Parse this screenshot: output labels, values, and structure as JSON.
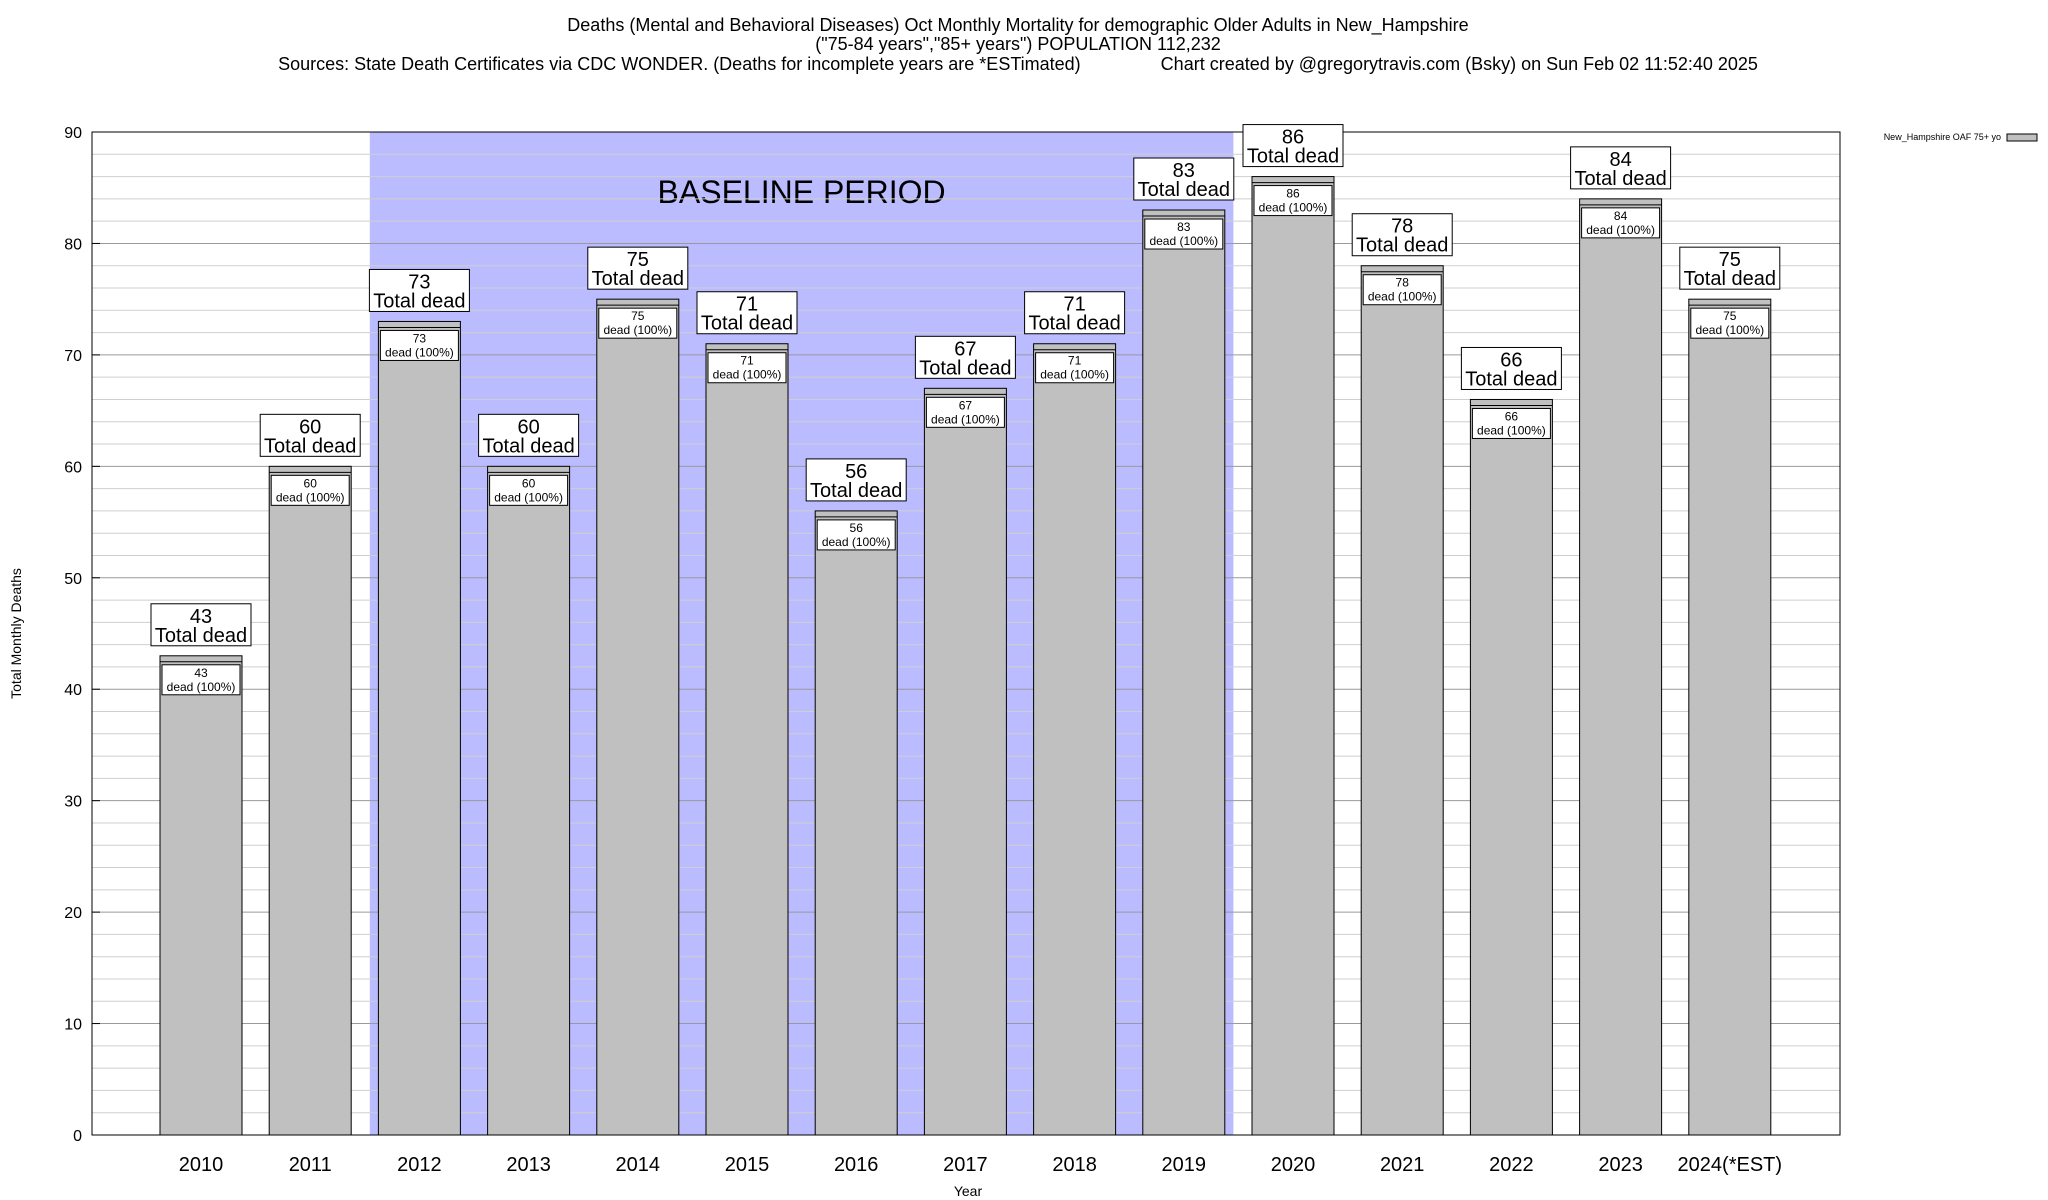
{
  "chart_data": {
    "type": "bar",
    "title_lines": [
      "Deaths (Mental and Behavioral Diseases) Oct Monthly Mortality for demographic Older Adults in New_Hampshire",
      "(\"75-84 years\",\"85+ years\") POPULATION 112,232",
      "Sources: State Death Certificates via CDC WONDER. (Deaths for incomplete years are *ESTimated)                Chart created by @gregorytravis.com (Bsky) on Sun Feb 02 11:52:40 2025"
    ],
    "xlabel": "Year",
    "ylabel": "Total Monthly Deaths",
    "ylim": [
      0,
      90
    ],
    "yticks": [
      0,
      10,
      20,
      30,
      40,
      50,
      60,
      70,
      80,
      90
    ],
    "minor_grid_step": 2,
    "grid": true,
    "categories": [
      "2010",
      "2011",
      "2012",
      "2013",
      "2014",
      "2015",
      "2016",
      "2017",
      "2018",
      "2019",
      "2020",
      "2021",
      "2022",
      "2023",
      "2024(*EST)"
    ],
    "values": [
      43,
      60,
      73,
      60,
      75,
      71,
      56,
      67,
      71,
      83,
      86,
      78,
      66,
      84,
      75
    ],
    "total_label_suffix": "Total dead",
    "inner_label_suffix": "dead (100%)",
    "baseline": {
      "label": "BASELINE PERIOD",
      "start_category": "2012",
      "end_category": "2019",
      "color": "#bbbbff"
    },
    "bar_color": "#c0c0c0",
    "legend": {
      "label": "New_Hampshire OAF 75+ yo",
      "placement": "top-right"
    }
  }
}
